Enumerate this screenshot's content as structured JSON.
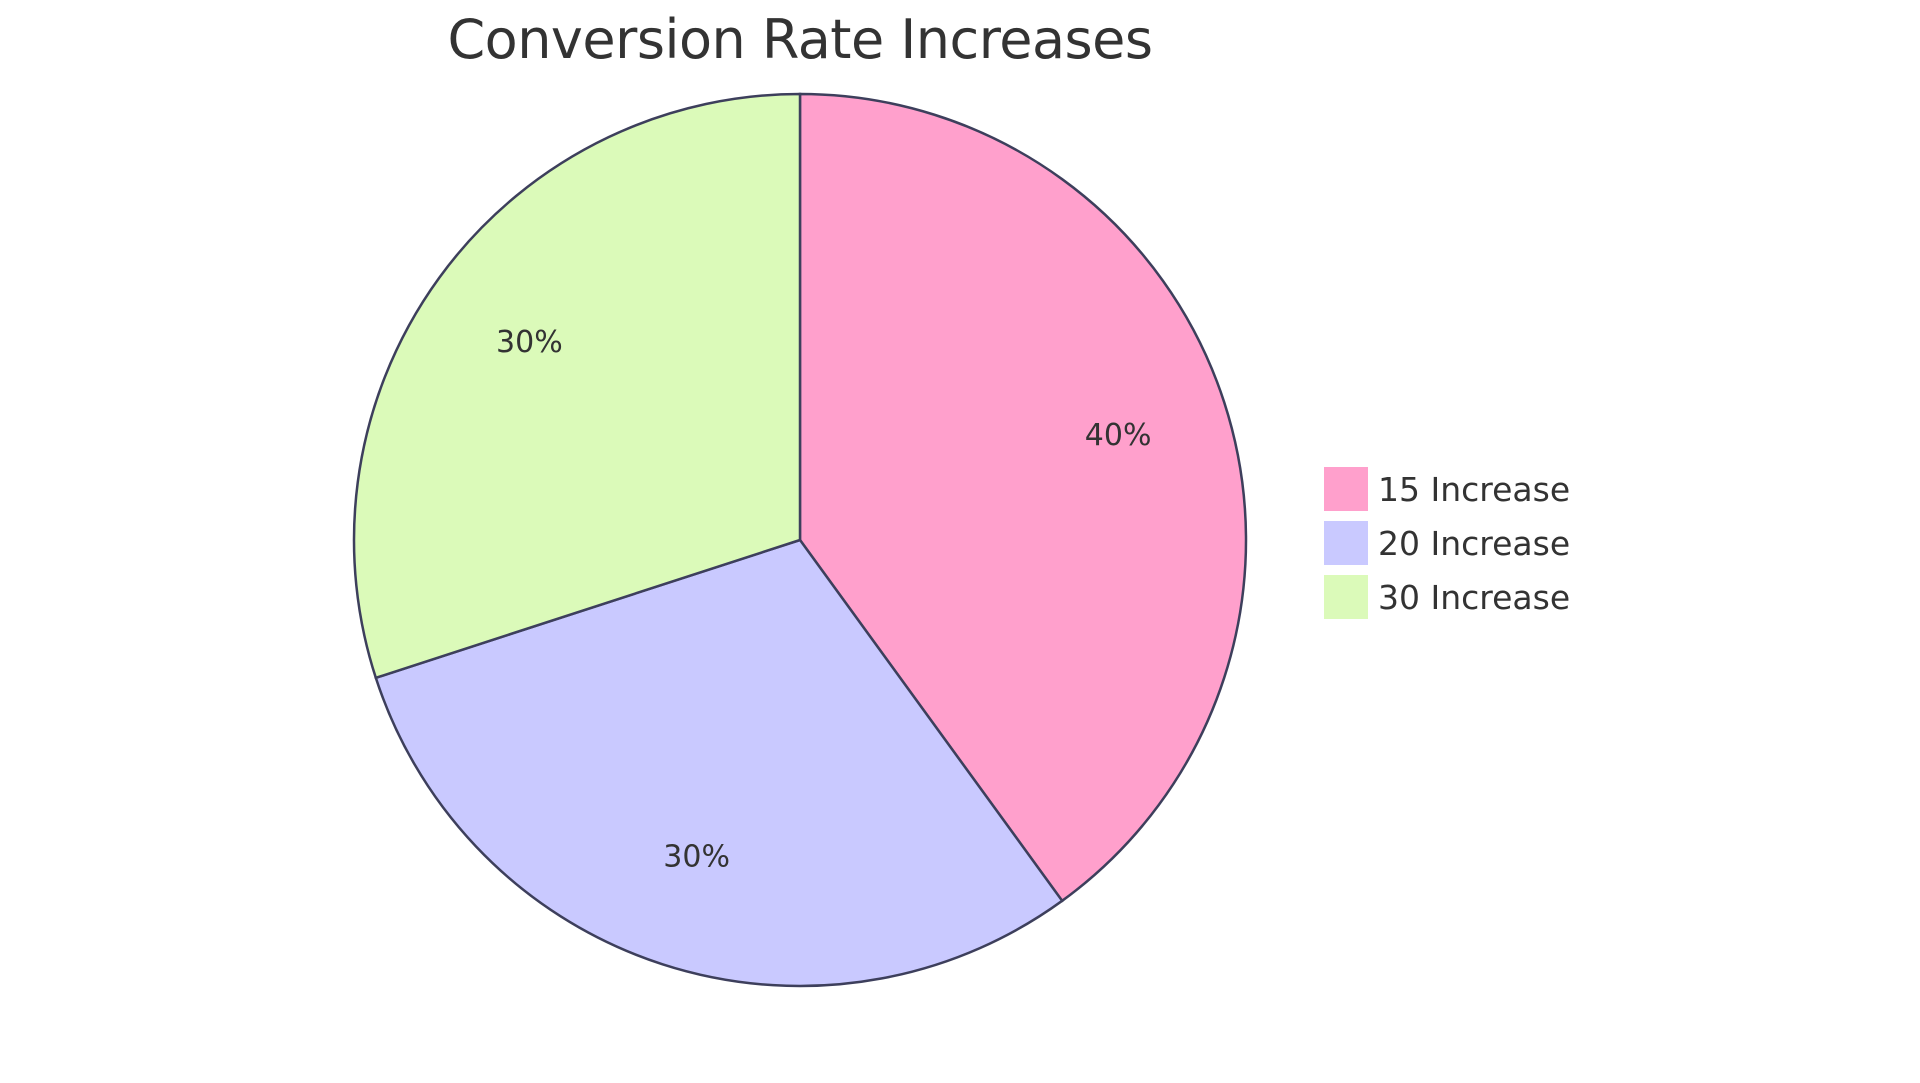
{
  "chart_data": {
    "type": "pie",
    "title": "Conversion Rate Increases",
    "categories": [
      "15 Increase",
      "20 Increase",
      "30 Increase"
    ],
    "values": [
      40,
      30,
      30
    ],
    "labels": [
      "40%",
      "30%",
      "30%"
    ],
    "colors": [
      "#ffa0cc",
      "#c9c9ff",
      "#dbfab9"
    ],
    "stroke_color": "#3d3f5c",
    "legend_position": "right",
    "start_angle": "12 o'clock, clockwise"
  },
  "legend": {
    "items": [
      {
        "label": "15 Increase",
        "color": "#ffa0cc"
      },
      {
        "label": "20 Increase",
        "color": "#c9c9ff"
      },
      {
        "label": "30 Increase",
        "color": "#dbfab9"
      }
    ]
  }
}
